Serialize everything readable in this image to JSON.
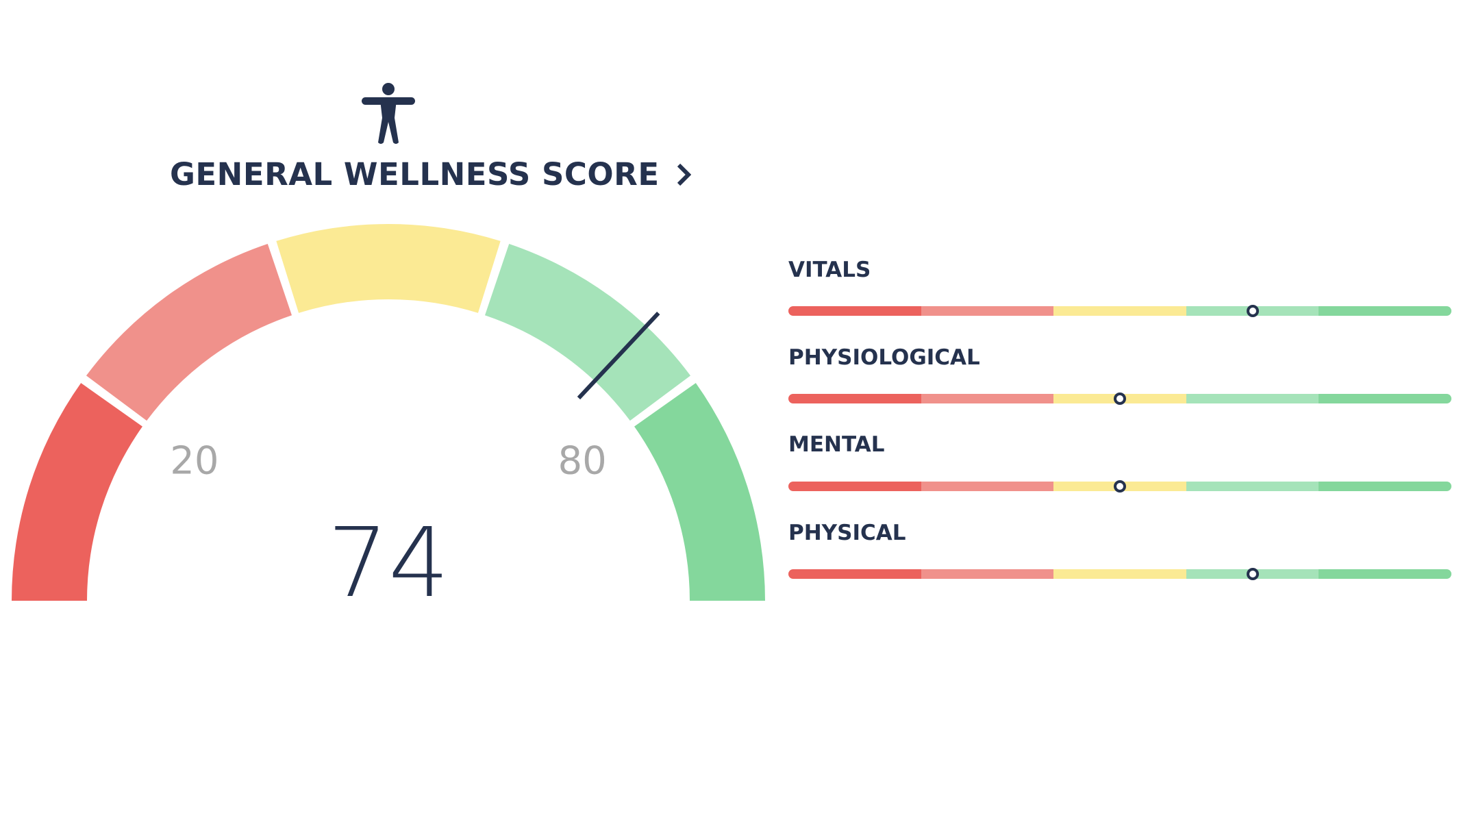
{
  "header": {
    "title": "GENERAL WELLNESS SCORE",
    "icon": "person-standing-icon",
    "chevron": "chevron-right-icon"
  },
  "chart_data": [
    {
      "type": "gauge",
      "value": 74,
      "value_label": "74",
      "range": [
        0,
        100
      ],
      "tick_labels": [
        {
          "value": 20,
          "label": "20"
        },
        {
          "value": 80,
          "label": "80"
        }
      ],
      "segment_colors": [
        "#EC625D",
        "#F0918B",
        "#FBEA94",
        "#A5E3B9",
        "#84D79C"
      ],
      "needle_color": "#25324E"
    },
    {
      "type": "bar-scale",
      "segment_colors": [
        "#EC625D",
        "#F0918B",
        "#FBEA94",
        "#A5E3B9",
        "#84D79C"
      ],
      "range": [
        0,
        100
      ],
      "items": [
        {
          "label": "VITALS",
          "value": 70
        },
        {
          "label": "PHYSIOLOGICAL",
          "value": 50
        },
        {
          "label": "MENTAL",
          "value": 50
        },
        {
          "label": "PHYSICAL",
          "value": 70
        }
      ]
    }
  ],
  "colors": {
    "text": "#25324E",
    "tick": "#A8A8A8"
  }
}
